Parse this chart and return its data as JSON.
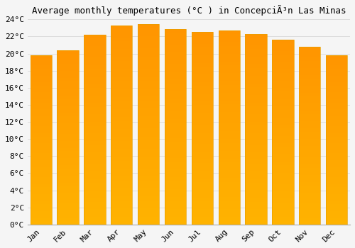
{
  "title": "Average monthly temperatures (°C ) in ConcepciÃ³n Las Minas",
  "months": [
    "Jan",
    "Feb",
    "Mar",
    "Apr",
    "May",
    "Jun",
    "Jul",
    "Aug",
    "Sep",
    "Oct",
    "Nov",
    "Dec"
  ],
  "temperatures": [
    19.8,
    20.4,
    22.2,
    23.3,
    23.4,
    22.9,
    22.5,
    22.7,
    22.3,
    21.6,
    20.8,
    19.8
  ],
  "bar_color_top": "#FFB300",
  "bar_color_bottom": "#FF9500",
  "bar_edge_color": "#E8A000",
  "background_color": "#F5F5F5",
  "grid_color": "#DDDDDD",
  "ylim": [
    0,
    24
  ],
  "ytick_step": 2,
  "title_fontsize": 9,
  "tick_fontsize": 8,
  "bar_width": 0.8
}
